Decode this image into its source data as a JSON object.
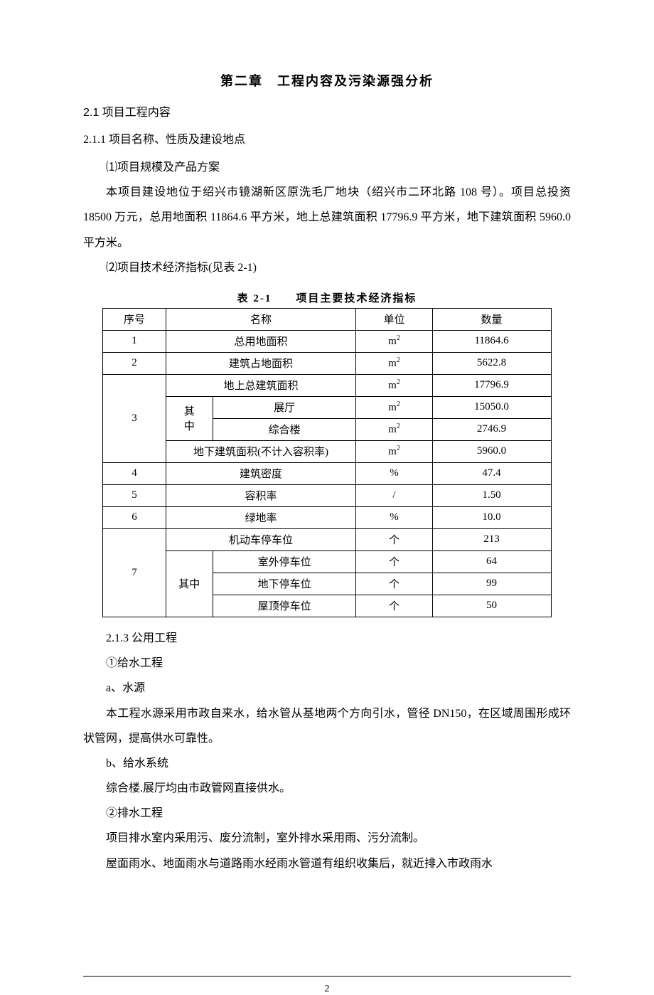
{
  "chapter_title": "第二章　工程内容及污染源强分析",
  "section_2_1": "2.1 项目工程内容",
  "subsection_2_1_1": "2.1.1 项目名称、性质及建设地点",
  "item1_label": "⑴项目规模及产品方案",
  "para1": "本项目建设地位于绍兴市镜湖新区原洗毛厂地块（绍兴市二环北路 108 号）。项目总投资 18500 万元，总用地面积 11864.6 平方米，地上总建筑面积 17796.9 平方米，地下建筑面积 5960.0 平方米。",
  "item2_label": "⑵项目技术经济指标(见表 2-1)",
  "table_caption": "表 2-1　　项目主要技术经济指标",
  "table": {
    "headers": {
      "seq": "序号",
      "name": "名称",
      "unit": "单位",
      "qty": "数量"
    },
    "r1": {
      "seq": "1",
      "name": "总用地面积",
      "unit": "m",
      "sup": "2",
      "qty": "11864.6"
    },
    "r2": {
      "seq": "2",
      "name": "建筑占地面积",
      "unit": "m",
      "sup": "2",
      "qty": "5622.8"
    },
    "r3a": {
      "seq": "3",
      "name": "地上总建筑面积",
      "unit": "m",
      "sup": "2",
      "qty": "17796.9"
    },
    "r3b": {
      "sub1": "其",
      "sub2": "中",
      "name": "展厅",
      "unit": "m",
      "sup": "2",
      "qty": "15050.0"
    },
    "r3c": {
      "name": "综合楼",
      "unit": "m",
      "sup": "2",
      "qty": "2746.9"
    },
    "r3d": {
      "name": "地下建筑面积(不计入容积率)",
      "unit": "m",
      "sup": "2",
      "qty": "5960.0"
    },
    "r4": {
      "seq": "4",
      "name": "建筑密度",
      "unit": "%",
      "qty": "47.4"
    },
    "r5": {
      "seq": "5",
      "name": "容积率",
      "unit": "/",
      "qty": "1.50"
    },
    "r6": {
      "seq": "6",
      "name": "绿地率",
      "unit": "%",
      "qty": "10.0"
    },
    "r7a": {
      "seq": "7",
      "name": "机动车停车位",
      "unit": "个",
      "qty": "213"
    },
    "r7b": {
      "sub": "其中",
      "name": "室外停车位",
      "unit": "个",
      "qty": "64"
    },
    "r7c": {
      "name": "地下停车位",
      "unit": "个",
      "qty": "99"
    },
    "r7d": {
      "name": "屋顶停车位",
      "unit": "个",
      "qty": "50"
    }
  },
  "subsection_2_1_3": "2.1.3 公用工程",
  "u1": "①给水工程",
  "u1a": "a、水源",
  "u1a_para": "本工程水源采用市政自来水，给水管从基地两个方向引水，管径 DN150，在区域周围形成环状管网，提高供水可靠性。",
  "u1b": "b、给水系统",
  "u1b_para": "综合楼.展厅均由市政管网直接供水。",
  "u2": "②排水工程",
  "u2_para1": "项目排水室内采用污、废分流制，室外排水采用雨、污分流制。",
  "u2_para2": "屋面雨水、地面雨水与道路雨水经雨水管道有组织收集后，就近排入市政雨水",
  "page_number": "2"
}
